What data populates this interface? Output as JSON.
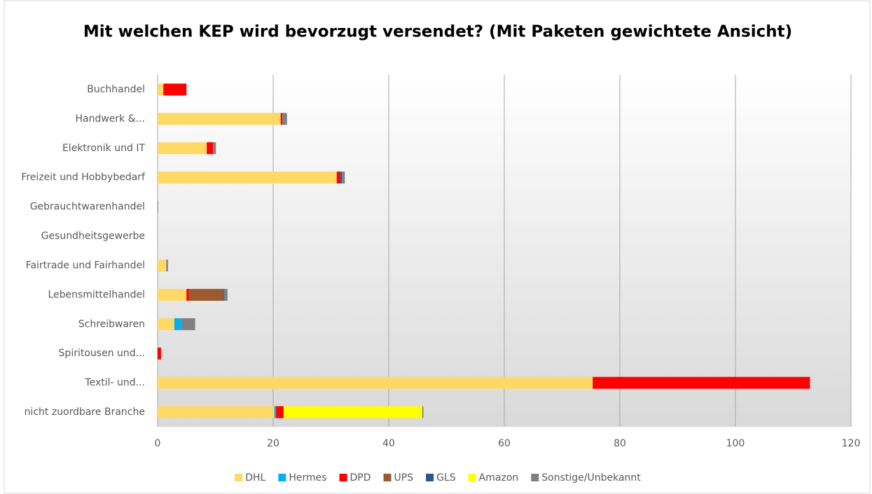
{
  "chart_data": {
    "type": "stacked_barh",
    "title": "Mit welchen KEP wird bevorzugt versendet? (Mit Paketen gewichtete Ansicht)",
    "categories": [
      "Buchhandel",
      "Handwerk &...",
      "Elektronik und IT",
      "Freizeit und Hobbybedarf",
      "Gebrauchtwarenhandel",
      "Gesundheitsgewerbe",
      "Fairtrade und Fairhandel",
      "Lebensmittelhandel",
      "Schreibwaren",
      "Spiritousen und...",
      "Textil- und...",
      "nicht zuordbare Branche"
    ],
    "series": [
      {
        "name": "DHL",
        "color": "#ffd966",
        "values": [
          1.0,
          21.3,
          8.5,
          31.0,
          0,
          0,
          1.5,
          5.0,
          2.9,
          0,
          75.3,
          20.2
        ]
      },
      {
        "name": "Hermes",
        "color": "#00b0f0",
        "values": [
          0,
          0,
          0,
          0,
          0,
          0,
          0,
          0,
          1.2,
          0,
          0,
          0.3
        ]
      },
      {
        "name": "DPD",
        "color": "#ff0000",
        "values": [
          4.0,
          0.3,
          1.1,
          0.6,
          0,
          0,
          0,
          0.4,
          0,
          0.6,
          37.6,
          1.3
        ]
      },
      {
        "name": "UPS",
        "color": "#9c5b2e",
        "values": [
          0,
          0,
          0,
          0,
          0,
          0,
          0,
          5.9,
          0,
          0,
          0,
          0
        ]
      },
      {
        "name": "GLS",
        "color": "#2f5597",
        "values": [
          0,
          0,
          0,
          0.3,
          0,
          0,
          0,
          0.2,
          0,
          0,
          0,
          0
        ]
      },
      {
        "name": "Amazon",
        "color": "#ffff00",
        "values": [
          0,
          0,
          0,
          0,
          0,
          0,
          0,
          0,
          0,
          0,
          0,
          24.0
        ]
      },
      {
        "name": "Sonstige/Unbekannt",
        "color": "#808080",
        "values": [
          0,
          0.8,
          0.5,
          0.5,
          0.1,
          0,
          0.3,
          0.6,
          2.4,
          0,
          0,
          0.2
        ]
      }
    ],
    "xlim": [
      0,
      120
    ],
    "xticks": [
      0,
      20,
      40,
      60,
      80,
      100,
      120
    ],
    "grid": true,
    "legend": "bottom"
  }
}
